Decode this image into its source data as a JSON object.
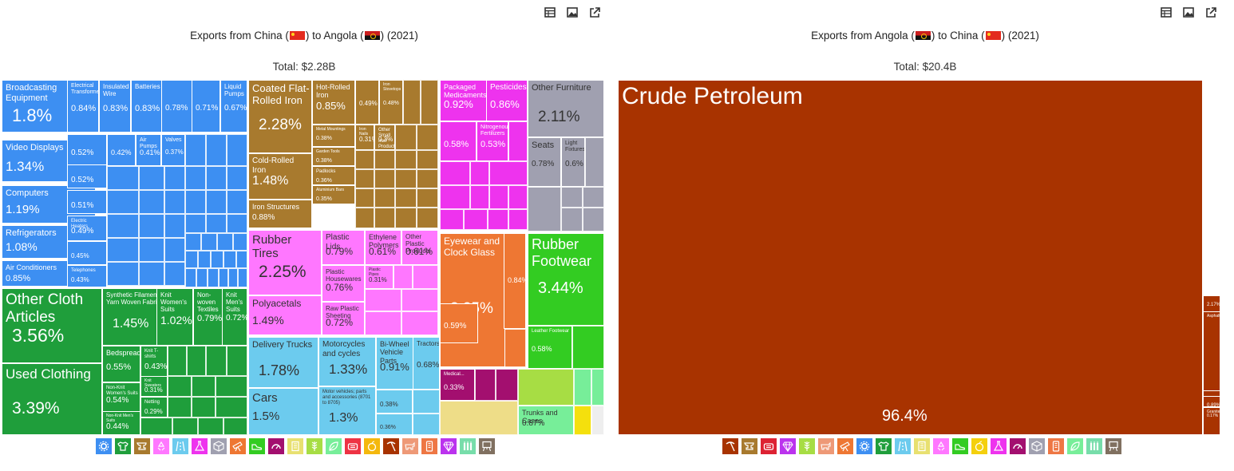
{
  "charts": [
    {
      "title_prefix": "Exports from China (",
      "title_mid": ") to Angola (",
      "title_suffix": ") (2021)",
      "total": "Total: $2.28B"
    },
    {
      "title_prefix": "Exports from Angola (",
      "title_mid": ") to China (",
      "title_suffix": ") (2021)",
      "total": "Total: $20.4B"
    }
  ],
  "colors": {
    "machines": "#3d8ff2",
    "textiles": "#1f9e3b",
    "metals": "#a87a2e",
    "plastics": "#ff77ff",
    "transport": "#6ccbee",
    "chemicals": "#ee33ee",
    "instruments": "#ee7733",
    "furniture": "#a0a0b0",
    "footwear": "#33cc22",
    "mineral": "#a83300",
    "stone": "#eedd88",
    "precious": "#a30f6f",
    "animal": "#a7dd44",
    "vegetable": "#f4e00d",
    "paper": "#e8e070",
    "hides": "#77ee99",
    "arts": "#eeeeee",
    "weapons": "#8833cc"
  },
  "chart_data": [
    {
      "type": "treemap",
      "title": "Exports from China to Angola (2021)",
      "total": "$2.28B",
      "items": [
        {
          "name": "Broadcasting Equipment",
          "value": 1.8,
          "sector": "machines"
        },
        {
          "name": "Electrical Transformers",
          "value": 0.84,
          "sector": "machines"
        },
        {
          "name": "Insulated Wire",
          "value": 0.83,
          "sector": "machines"
        },
        {
          "name": "Batteries",
          "value": 0.83,
          "sector": "machines"
        },
        {
          "name": "",
          "value": 0.78,
          "sector": "machines"
        },
        {
          "name": "",
          "value": 0.71,
          "sector": "machines"
        },
        {
          "name": "Liquid Pumps",
          "value": 0.67,
          "sector": "machines"
        },
        {
          "name": "Video Displays",
          "value": 1.34,
          "sector": "machines"
        },
        {
          "name": "Computers",
          "value": 1.19,
          "sector": "machines"
        },
        {
          "name": "Refrigerators",
          "value": 1.08,
          "sector": "machines"
        },
        {
          "name": "Air Conditioners",
          "value": 0.85,
          "sector": "machines"
        },
        {
          "name": "",
          "value": 0.52,
          "sector": "machines"
        },
        {
          "name": "",
          "value": 0.52,
          "sector": "machines"
        },
        {
          "name": "",
          "value": 0.51,
          "sector": "machines"
        },
        {
          "name": "Electric Heaters",
          "value": 0.49,
          "sector": "machines"
        },
        {
          "name": "",
          "value": 0.45,
          "sector": "machines"
        },
        {
          "name": "Telephones",
          "value": 0.43,
          "sector": "machines"
        },
        {
          "name": "",
          "value": 0.42,
          "sector": "machines"
        },
        {
          "name": "Air Pumps",
          "value": 0.41,
          "sector": "machines"
        },
        {
          "name": "Valves",
          "value": 0.37,
          "sector": "machines"
        },
        {
          "name": "Other Cloth Articles",
          "value": 3.56,
          "sector": "textiles"
        },
        {
          "name": "Used Clothing",
          "value": 3.39,
          "sector": "textiles"
        },
        {
          "name": "Synthetic Filament Yarn Woven Fabric",
          "value": 1.45,
          "sector": "textiles"
        },
        {
          "name": "Knit Women's Suits",
          "value": 1.02,
          "sector": "textiles"
        },
        {
          "name": "Non-woven Textiles",
          "value": 0.79,
          "sector": "textiles"
        },
        {
          "name": "Knit Men's Suits",
          "value": 0.72,
          "sector": "textiles"
        },
        {
          "name": "Bedspreads",
          "value": 0.55,
          "sector": "textiles"
        },
        {
          "name": "Knit T-shirts",
          "value": 0.43,
          "sector": "textiles"
        },
        {
          "name": "Non-Knit Women's Suits",
          "value": 0.54,
          "sector": "textiles"
        },
        {
          "name": "Knit Sweaters",
          "value": 0.31,
          "sector": "textiles"
        },
        {
          "name": "Non-Knit Men's Suits",
          "value": 0.44,
          "sector": "textiles"
        },
        {
          "name": "Netting",
          "value": 0.29,
          "sector": "textiles"
        },
        {
          "name": "Coated Flat-Rolled Iron",
          "value": 2.28,
          "sector": "metals"
        },
        {
          "name": "Cold-Rolled Iron",
          "value": 1.48,
          "sector": "metals"
        },
        {
          "name": "Iron Structures",
          "value": 0.88,
          "sector": "metals"
        },
        {
          "name": "Hot-Rolled Iron",
          "value": 0.85,
          "sector": "metals"
        },
        {
          "name": "",
          "value": 0.49,
          "sector": "metals"
        },
        {
          "name": "Iron Stovetops",
          "value": 0.48,
          "sector": "metals"
        },
        {
          "name": "Metal Mountings",
          "value": 0.38,
          "sector": "metals"
        },
        {
          "name": "Garden Tools",
          "value": 0.38,
          "sector": "metals"
        },
        {
          "name": "Padlocks",
          "value": 0.36,
          "sector": "metals"
        },
        {
          "name": "Aluminium Bars",
          "value": 0.35,
          "sector": "metals"
        },
        {
          "name": "Iron Nails",
          "value": 0.31,
          "sector": "metals"
        },
        {
          "name": "Other Small Iron Products",
          "value": 0.3,
          "sector": "metals"
        },
        {
          "name": "Rubber Tires",
          "value": 2.25,
          "sector": "plastics"
        },
        {
          "name": "Polyacetals",
          "value": 1.49,
          "sector": "plastics"
        },
        {
          "name": "Plastic Lids",
          "value": 0.79,
          "sector": "plastics"
        },
        {
          "name": "Ethylene Polymers",
          "value": 0.61,
          "sector": "plastics"
        },
        {
          "name": "Other Plastic Products",
          "value": 0.61,
          "sector": "plastics"
        },
        {
          "name": "Plastic Housewares",
          "value": 0.76,
          "sector": "plastics"
        },
        {
          "name": "Raw Plastic Sheeting",
          "value": 0.72,
          "sector": "plastics"
        },
        {
          "name": "Plastic Pipes",
          "value": 0.31,
          "sector": "plastics"
        },
        {
          "name": "Delivery Trucks",
          "value": 1.78,
          "sector": "transport"
        },
        {
          "name": "Cars",
          "value": 1.5,
          "sector": "transport"
        },
        {
          "name": "Motorcycles and cycles",
          "value": 1.33,
          "sector": "transport"
        },
        {
          "name": "Motor vehicles; parts and accessories (8701 to 8705)",
          "value": 1.3,
          "sector": "transport"
        },
        {
          "name": "Bi-Wheel Vehicle Parts",
          "value": 0.91,
          "sector": "transport"
        },
        {
          "name": "Tractors",
          "value": 0.68,
          "sector": "transport"
        },
        {
          "name": "",
          "value": 0.38,
          "sector": "transport"
        },
        {
          "name": "",
          "value": 0.36,
          "sector": "transport"
        },
        {
          "name": "Packaged Medicaments",
          "value": 0.92,
          "sector": "chemicals"
        },
        {
          "name": "Pesticides",
          "value": 0.86,
          "sector": "chemicals"
        },
        {
          "name": "",
          "value": 0.58,
          "sector": "chemicals"
        },
        {
          "name": "Nitrogenous Fertilizers",
          "value": 0.53,
          "sector": "chemicals"
        },
        {
          "name": "Eyewear and Clock Glass",
          "value": 2.25,
          "sector": "instruments"
        },
        {
          "name": "",
          "value": 0.84,
          "sector": "instruments"
        },
        {
          "name": "",
          "value": 0.59,
          "sector": "instruments"
        },
        {
          "name": "Other Furniture",
          "value": 2.11,
          "sector": "furniture"
        },
        {
          "name": "Seats",
          "value": 0.78,
          "sector": "furniture"
        },
        {
          "name": "Light Fixtures",
          "value": 0.6,
          "sector": "furniture"
        },
        {
          "name": "Rubber Footwear",
          "value": 3.44,
          "sector": "footwear"
        },
        {
          "name": "Leather Footwear",
          "value": 0.58,
          "sector": "footwear"
        },
        {
          "name": "Trunks and Cases",
          "value": 0.87,
          "sector": "hides"
        },
        {
          "name": "Medical...",
          "value": 0.33,
          "sector": "precious"
        }
      ]
    },
    {
      "type": "treemap",
      "title": "Exports from Angola to China (2021)",
      "total": "$20.4B",
      "items": [
        {
          "name": "Crude Petroleum",
          "value": 96.4,
          "sector": "mineral"
        },
        {
          "name": "",
          "value": 2.17,
          "sector": "mineral"
        },
        {
          "name": "Asphalt...",
          "value": 0,
          "sector": "mineral"
        },
        {
          "name": "",
          "value": 0.89,
          "sector": "mineral"
        },
        {
          "name": "Granite",
          "value": 0.17,
          "sector": "mineral"
        }
      ]
    }
  ],
  "legend_icons": {
    "left": [
      {
        "name": "machines",
        "icon": "gear-icon",
        "color": "#3d8ff2"
      },
      {
        "name": "textiles",
        "icon": "shirt-icon",
        "color": "#1f9e3b"
      },
      {
        "name": "metals",
        "icon": "anvil-icon",
        "color": "#a87a2e"
      },
      {
        "name": "plastics",
        "icon": "recycle-icon",
        "color": "#ff77ff"
      },
      {
        "name": "transport",
        "icon": "road-icon",
        "color": "#6ccbee"
      },
      {
        "name": "chemicals",
        "icon": "flask-icon",
        "color": "#ee33ee"
      },
      {
        "name": "furniture",
        "icon": "box-icon",
        "color": "#a0a0b0"
      },
      {
        "name": "instruments",
        "icon": "telescope-icon",
        "color": "#ee7733"
      },
      {
        "name": "footwear",
        "icon": "shoe-icon",
        "color": "#33cc22"
      },
      {
        "name": "precious",
        "icon": "gauge-icon",
        "color": "#a30f6f"
      },
      {
        "name": "paper",
        "icon": "scroll-icon",
        "color": "#e8e070"
      },
      {
        "name": "vegetable",
        "icon": "wheat-icon",
        "color": "#a7dd44"
      },
      {
        "name": "animal",
        "icon": "leaf-icon",
        "color": "#77ee99"
      },
      {
        "name": "hides",
        "icon": "bag-icon",
        "color": "#ee3344"
      },
      {
        "name": "foodstuffs",
        "icon": "fruit-icon",
        "color": "#f4b80d"
      },
      {
        "name": "mineral",
        "icon": "pickaxe-icon",
        "color": "#a83300"
      },
      {
        "name": "animals",
        "icon": "cow-icon",
        "color": "#ee9977"
      },
      {
        "name": "weapons",
        "icon": "phone-icon",
        "color": "#ee7744"
      },
      {
        "name": "gems",
        "icon": "diamond-icon",
        "color": "#bb33ee"
      },
      {
        "name": "footwear2",
        "icon": "bottles-icon",
        "color": "#77ddaa"
      },
      {
        "name": "arts",
        "icon": "easel-icon",
        "color": "#807060"
      }
    ],
    "right": [
      {
        "name": "mineral",
        "icon": "pickaxe-icon",
        "color": "#a83300"
      },
      {
        "name": "metals",
        "icon": "anvil-icon",
        "color": "#a87a2e"
      },
      {
        "name": "hides",
        "icon": "bag-icon",
        "color": "#dd2233"
      },
      {
        "name": "gems",
        "icon": "diamond-icon",
        "color": "#bb33ee"
      },
      {
        "name": "vegetable",
        "icon": "wheat-icon",
        "color": "#a7dd44"
      },
      {
        "name": "animals",
        "icon": "cow-icon",
        "color": "#ee9977"
      },
      {
        "name": "instruments",
        "icon": "telescope-icon",
        "color": "#ee7733"
      },
      {
        "name": "machines",
        "icon": "gear-icon",
        "color": "#3d8ff2"
      },
      {
        "name": "textiles",
        "icon": "shirt-icon",
        "color": "#1f9e3b"
      },
      {
        "name": "transport",
        "icon": "road-icon",
        "color": "#6ccbee"
      },
      {
        "name": "paper",
        "icon": "scroll-icon",
        "color": "#e8e070"
      },
      {
        "name": "plastics",
        "icon": "recycle-icon",
        "color": "#ff77ff"
      },
      {
        "name": "footwear",
        "icon": "shoe-icon",
        "color": "#33cc22"
      },
      {
        "name": "foodstuffs",
        "icon": "fruit-icon",
        "color": "#f4d00d"
      },
      {
        "name": "chemicals",
        "icon": "flask-icon",
        "color": "#ee33ee"
      },
      {
        "name": "precious",
        "icon": "gauge-icon",
        "color": "#a30f6f"
      },
      {
        "name": "furniture",
        "icon": "box-icon",
        "color": "#a0a0b0"
      },
      {
        "name": "weapons",
        "icon": "phone-icon",
        "color": "#ee7744"
      },
      {
        "name": "animal",
        "icon": "leaf-icon",
        "color": "#77ee99"
      },
      {
        "name": "footwear2",
        "icon": "bottles-icon",
        "color": "#77ddaa"
      },
      {
        "name": "arts",
        "icon": "easel-icon",
        "color": "#807060"
      }
    ]
  },
  "toolbar_icons": [
    "table-icon",
    "image-icon",
    "share-icon"
  ]
}
